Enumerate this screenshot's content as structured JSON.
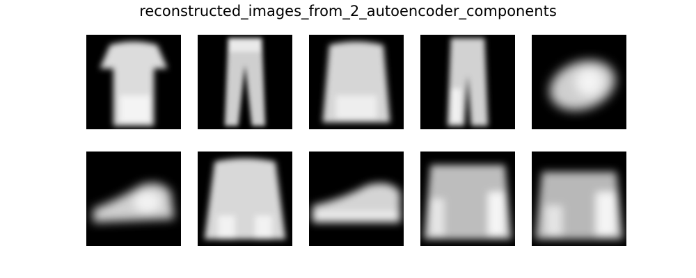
{
  "figure": {
    "title": "reconstructed_images_from_2_autoencoder_components"
  },
  "grid": {
    "rows": 2,
    "columns": 5,
    "images": [
      {
        "row": 1,
        "col": 1,
        "depicts": "t-shirt"
      },
      {
        "row": 1,
        "col": 2,
        "depicts": "trousers"
      },
      {
        "row": 1,
        "col": 3,
        "depicts": "pullover"
      },
      {
        "row": 1,
        "col": 4,
        "depicts": "trousers"
      },
      {
        "row": 1,
        "col": 5,
        "depicts": "bag"
      },
      {
        "row": 2,
        "col": 1,
        "depicts": "sneaker"
      },
      {
        "row": 2,
        "col": 2,
        "depicts": "coat"
      },
      {
        "row": 2,
        "col": 3,
        "depicts": "sneaker"
      },
      {
        "row": 2,
        "col": 4,
        "depicts": "pullover"
      },
      {
        "row": 2,
        "col": 5,
        "depicts": "bag"
      }
    ]
  },
  "colors": {
    "background": "#ffffff",
    "tile_background": "#000000",
    "image_foreground": "#e8e8e8"
  }
}
